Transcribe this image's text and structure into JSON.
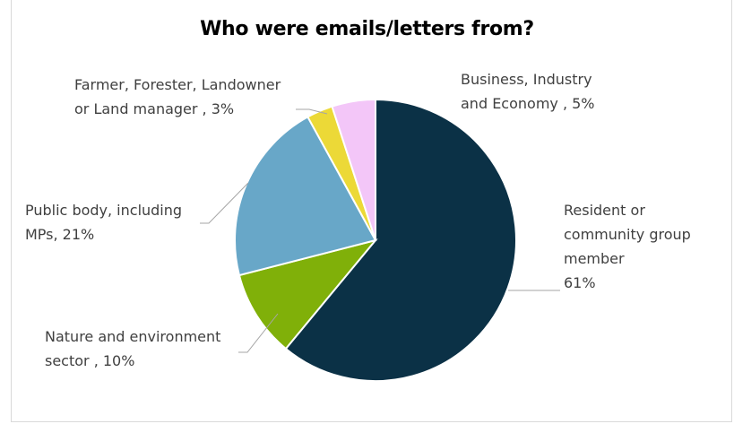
{
  "chart_data": {
    "type": "pie",
    "title": "Who were emails/letters from?",
    "slices": [
      {
        "label": "Resident or community group member",
        "label_lines": [
          "Resident or",
          "community group",
          "member",
          "61%"
        ],
        "value": 61,
        "color": "#0b3146"
      },
      {
        "label": "Nature and environment sector",
        "label_lines": [
          "Nature and environment",
          "sector , 10%"
        ],
        "value": 10,
        "color": "#80b009"
      },
      {
        "label": "Public body, including MPs",
        "label_lines": [
          "Public body, including",
          "MPs, 21%"
        ],
        "value": 21,
        "color": "#68a7c8"
      },
      {
        "label": "Farmer, Forester, Landowner or Land manager",
        "label_lines": [
          "Farmer, Forester, Landowner",
          "or Land manager , 3%"
        ],
        "value": 3,
        "color": "#ecd937"
      },
      {
        "label": "Business, Industry and Economy",
        "label_lines": [
          "Business, Industry",
          "and Economy , 5%"
        ],
        "value": 5,
        "color": "#f3c6f8"
      }
    ],
    "legend": "none"
  }
}
